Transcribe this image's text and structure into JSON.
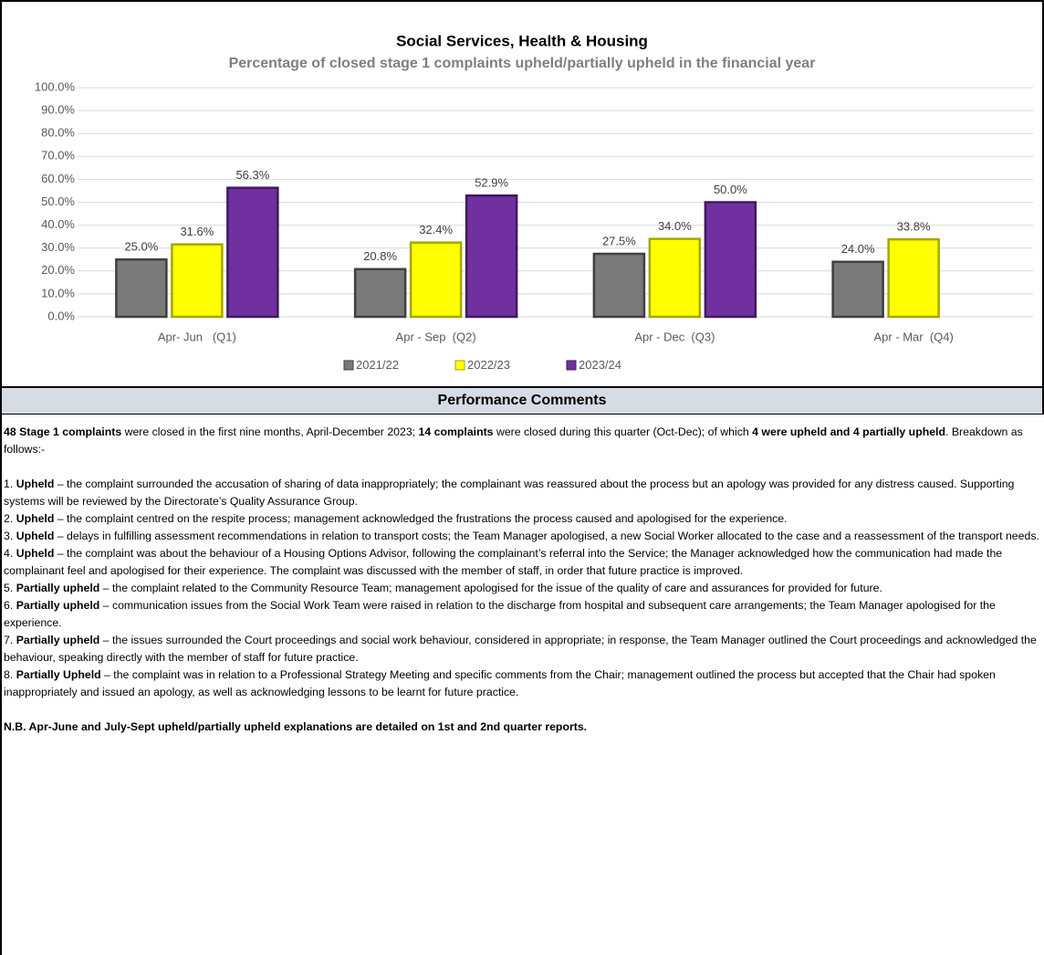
{
  "chart_data": {
    "type": "bar",
    "title": "Social Services, Health & Housing",
    "subtitle": "Percentage of closed stage 1 complaints upheld/partially upheld in the financial year",
    "categories": [
      "Apr- Jun   (Q1)",
      "Apr - Sep  (Q2)",
      "Apr - Dec  (Q3)",
      "Apr - Mar  (Q4)"
    ],
    "series": [
      {
        "name": "2021/22",
        "color": "#7a7a7a",
        "values": [
          25.0,
          20.8,
          27.5,
          24.0
        ],
        "value_labels": [
          "25.0%",
          "20.8%",
          "27.5%",
          "24.0%"
        ]
      },
      {
        "name": "2022/23",
        "color": "#ffff00",
        "values": [
          31.6,
          32.4,
          34.0,
          33.8
        ],
        "value_labels": [
          "31.6%",
          "32.4%",
          "34.0%",
          "33.8%"
        ]
      },
      {
        "name": "2023/24",
        "color": "#7030a0",
        "values": [
          56.3,
          52.9,
          50.0,
          null
        ],
        "value_labels": [
          "56.3%",
          "52.9%",
          "50.0%",
          null
        ]
      }
    ],
    "ylim": [
      0,
      100
    ],
    "yticks": [
      {
        "value": 0,
        "label": "0.0%"
      },
      {
        "value": 10,
        "label": "10.0%"
      },
      {
        "value": 20,
        "label": "20.0%"
      },
      {
        "value": 30,
        "label": "30.0%"
      },
      {
        "value": 40,
        "label": "40.0%"
      },
      {
        "value": 50,
        "label": "50.0%"
      },
      {
        "value": 60,
        "label": "60.0%"
      },
      {
        "value": 70,
        "label": "70.0%"
      },
      {
        "value": 80,
        "label": "80.0%"
      },
      {
        "value": 90,
        "label": "90.0%"
      },
      {
        "value": 100,
        "label": "100.0%"
      }
    ],
    "grid": true,
    "legend": "bottom"
  },
  "comments": {
    "heading": "Performance Comments",
    "intro": [
      {
        "text": "48 Stage 1 complaints",
        "bold": true
      },
      {
        "text": " were closed in the first nine months, April-December 2023; "
      },
      {
        "text": "14 complaints",
        "bold": true
      },
      {
        "text": " were closed during this quarter (Oct-Dec); of which "
      },
      {
        "text": "4 were upheld and 4 partially upheld",
        "bold": true
      },
      {
        "text": ". Breakdown as follows:-"
      }
    ],
    "items": [
      [
        {
          "text": "1. "
        },
        {
          "text": "Upheld",
          "bold": true
        },
        {
          "text": " – the complaint surrounded the accusation of sharing of data inappropriately; the complainant was reassured about the process but an apology was provided for any distress caused. Supporting systems will be reviewed by the Directorate’s Quality Assurance Group."
        }
      ],
      [
        {
          "text": "2. "
        },
        {
          "text": "Upheld",
          "bold": true
        },
        {
          "text": " – the complaint centred on the respite process; management acknowledged the frustrations the process caused and apologised for the experience."
        }
      ],
      [
        {
          "text": "3. "
        },
        {
          "text": "Upheld",
          "bold": true
        },
        {
          "text": " – delays in fulfilling assessment recommendations in relation to transport costs; the Team Manager apologised, a new Social Worker allocated to the case and a reassessment of the transport needs."
        }
      ],
      [
        {
          "text": "4. "
        },
        {
          "text": "Upheld",
          "bold": true
        },
        {
          "text": " – the complaint was about the behaviour of a Housing Options Advisor, following the complainant’s referral into the Service; the Manager acknowledged how the communication had made the complainant feel and apologised for their experience. The complaint was discussed with the member of staff, in order that future practice is improved."
        }
      ],
      [
        {
          "text": "5. "
        },
        {
          "text": "Partially upheld",
          "bold": true
        },
        {
          "text": " – the complaint related to the Community Resource Team; management apologised for the issue of the quality of care and assurances for provided for future."
        }
      ],
      [
        {
          "text": "6. "
        },
        {
          "text": "Partially upheld",
          "bold": true
        },
        {
          "text": " – communication issues from the Social Work Team were raised in relation to the discharge from hospital and subsequent care arrangements; the Team Manager apologised for the experience."
        }
      ],
      [
        {
          "text": "7. "
        },
        {
          "text": "Partially upheld",
          "bold": true
        },
        {
          "text": " – the issues surrounded the Court proceedings and social work behaviour, considered in appropriate; in response, the Team Manager outlined the Court proceedings and acknowledged the behaviour, speaking directly with the member of staff for future practice."
        }
      ],
      [
        {
          "text": "8. "
        },
        {
          "text": "Partially Upheld",
          "bold": true
        },
        {
          "text": " – the complaint was in relation to a Professional Strategy Meeting and specific comments from the Chair; management outlined the process but accepted that the Chair had spoken inappropriately and issued an apology, as well as acknowledging lessons to be learnt for future practice."
        }
      ]
    ],
    "note": [
      {
        "text": "N.B. Apr-June and July-Sept upheld/partially upheld explanations are detailed on 1st and 2nd quarter reports.",
        "bold": true
      }
    ]
  }
}
